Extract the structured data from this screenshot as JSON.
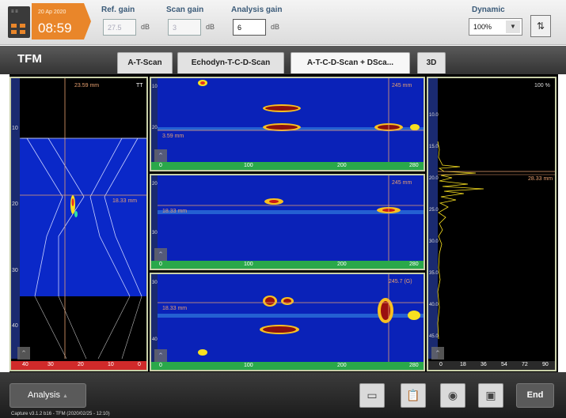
{
  "clock": {
    "date": "20 Ap 2020",
    "time": "08:59"
  },
  "gains": {
    "ref": {
      "label": "Ref. gain",
      "value": "27.5",
      "unit": "dB"
    },
    "scan": {
      "label": "Scan gain",
      "value": "3",
      "unit": "dB"
    },
    "analysis": {
      "label": "Analysis gain",
      "value": "6",
      "unit": "dB"
    }
  },
  "dynamic": {
    "label": "Dynamic",
    "value": "100%",
    "arrow": "▼"
  },
  "sort_icon": "sort-arrows-icon",
  "title": "TFM",
  "tabs": [
    "A-T-Scan",
    "Echodyn-T-C-D-Scan",
    "A-T-C-D-Scan + DSca...",
    "3D"
  ],
  "left_panel": {
    "depth_label": "23.59 mm",
    "corner_tag": "TT",
    "cursor_label": "18.33 mm",
    "y_ticks": [
      "10",
      "20",
      "30",
      "40"
    ],
    "x_ticks": [
      "40",
      "30",
      "20",
      "10",
      "0"
    ]
  },
  "center_panels": [
    {
      "corner_value": "245 mm",
      "cursor_label": "3.59 mm",
      "y_ticks": [
        "10",
        "20"
      ],
      "x_ticks": [
        "0",
        "100",
        "200",
        "280"
      ]
    },
    {
      "corner_value": "245 mm",
      "cursor_label": "18.33 mm",
      "y_ticks": [
        "20",
        "30"
      ],
      "x_ticks": [
        "0",
        "100",
        "200",
        "280"
      ]
    },
    {
      "corner_value": "245.7 (G)",
      "cursor_label": "18.33 mm",
      "y_ticks": [
        "30",
        "40"
      ],
      "x_ticks": [
        "0",
        "100",
        "200",
        "280"
      ]
    }
  ],
  "right_panel": {
    "top_value": "100 %",
    "cursor_value": "28.33 mm",
    "y_ticks": [
      "10.0",
      "15.0",
      "20.0",
      "25.0",
      "30.0",
      "35.0",
      "40.0",
      "45.0"
    ],
    "x_ticks": [
      "0",
      "18",
      "36",
      "54",
      "72",
      "90"
    ]
  },
  "bottom": {
    "analysis_label": "Analysis",
    "analysis_arrow": "▲",
    "end_label": "End",
    "icons": [
      "layout-icon",
      "clipboard-icon",
      "camera-icon",
      "save-icon"
    ],
    "caption": "Capture v3.1.2 b16 - TFM (2020/02/25 - 12:10)"
  },
  "colors": {
    "accent": "#e9862a",
    "panel_border": "#c8cfa8",
    "cursor_line": "#e8a070",
    "scale_green": "#2aa84a",
    "scale_red": "#e03030"
  }
}
